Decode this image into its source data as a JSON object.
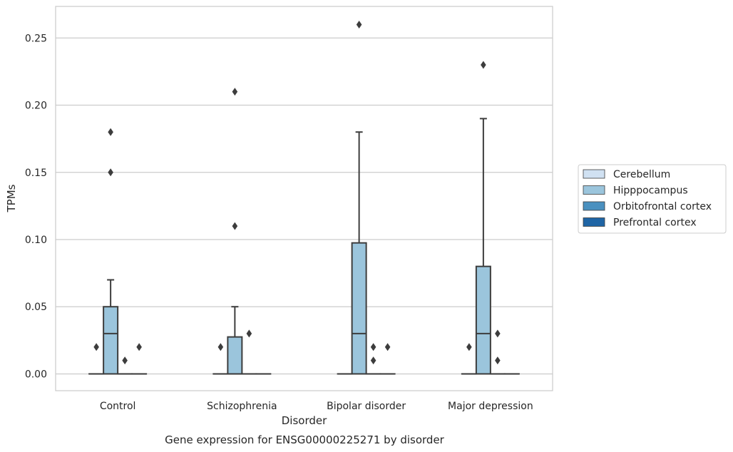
{
  "chart_data": {
    "type": "box",
    "caption": "Gene expression for ENSG00000225271 by disorder",
    "xlabel": "Disorder",
    "ylabel": "TPMs",
    "ylim": [
      -0.0125,
      0.2735
    ],
    "yticks": [
      0.0,
      0.05,
      0.1,
      0.15,
      0.2,
      0.25
    ],
    "ytick_labels": [
      "0.00",
      "0.05",
      "0.10",
      "0.15",
      "0.20",
      "0.25"
    ],
    "grid": true,
    "legend_position": "right",
    "categories": [
      "Control",
      "Schizophrenia",
      "Bipolar disorder",
      "Major depression"
    ],
    "series": [
      {
        "name": "Cerebellum",
        "color": "#d0e1f2",
        "boxes": [
          {
            "min": 0,
            "q1": 0,
            "median": 0,
            "q3": 0,
            "max": 0,
            "outliers": [
              0.02
            ]
          },
          {
            "min": 0,
            "q1": 0,
            "median": 0,
            "q3": 0,
            "max": 0,
            "outliers": [
              0.02
            ]
          },
          {
            "min": 0,
            "q1": 0,
            "median": 0,
            "q3": 0,
            "max": 0,
            "outliers": []
          },
          {
            "min": 0,
            "q1": 0,
            "median": 0,
            "q3": 0,
            "max": 0,
            "outliers": [
              0.02
            ]
          }
        ]
      },
      {
        "name": "Hipppocampus",
        "color": "#9bc5dc",
        "boxes": [
          {
            "min": 0,
            "q1": 0,
            "median": 0.03,
            "q3": 0.05,
            "max": 0.07,
            "outliers": [
              0.15,
              0.18
            ]
          },
          {
            "min": 0,
            "q1": 0,
            "median": 0,
            "q3": 0.0275,
            "max": 0.05,
            "outliers": [
              0.11,
              0.21
            ]
          },
          {
            "min": 0,
            "q1": 0,
            "median": 0.03,
            "q3": 0.0975,
            "max": 0.18,
            "outliers": [
              0.26
            ]
          },
          {
            "min": 0,
            "q1": 0,
            "median": 0.03,
            "q3": 0.08,
            "max": 0.19,
            "outliers": [
              0.23
            ]
          }
        ]
      },
      {
        "name": "Orbitofrontal cortex",
        "color": "#4a90bf",
        "boxes": [
          {
            "min": 0,
            "q1": 0,
            "median": 0,
            "q3": 0,
            "max": 0,
            "outliers": [
              0.01
            ]
          },
          {
            "min": 0,
            "q1": 0,
            "median": 0,
            "q3": 0,
            "max": 0,
            "outliers": [
              0.03
            ]
          },
          {
            "min": 0,
            "q1": 0,
            "median": 0,
            "q3": 0,
            "max": 0,
            "outliers": [
              0.01,
              0.02
            ]
          },
          {
            "min": 0,
            "q1": 0,
            "median": 0,
            "q3": 0,
            "max": 0,
            "outliers": [
              0.01,
              0.03
            ]
          }
        ]
      },
      {
        "name": "Prefrontal cortex",
        "color": "#1f65a5",
        "boxes": [
          {
            "min": 0,
            "q1": 0,
            "median": 0,
            "q3": 0,
            "max": 0,
            "outliers": [
              0.02
            ]
          },
          {
            "min": 0,
            "q1": 0,
            "median": 0,
            "q3": 0,
            "max": 0,
            "outliers": []
          },
          {
            "min": 0,
            "q1": 0,
            "median": 0,
            "q3": 0,
            "max": 0,
            "outliers": [
              0.02
            ]
          },
          {
            "min": 0,
            "q1": 0,
            "median": 0,
            "q3": 0,
            "max": 0,
            "outliers": []
          }
        ]
      }
    ]
  }
}
